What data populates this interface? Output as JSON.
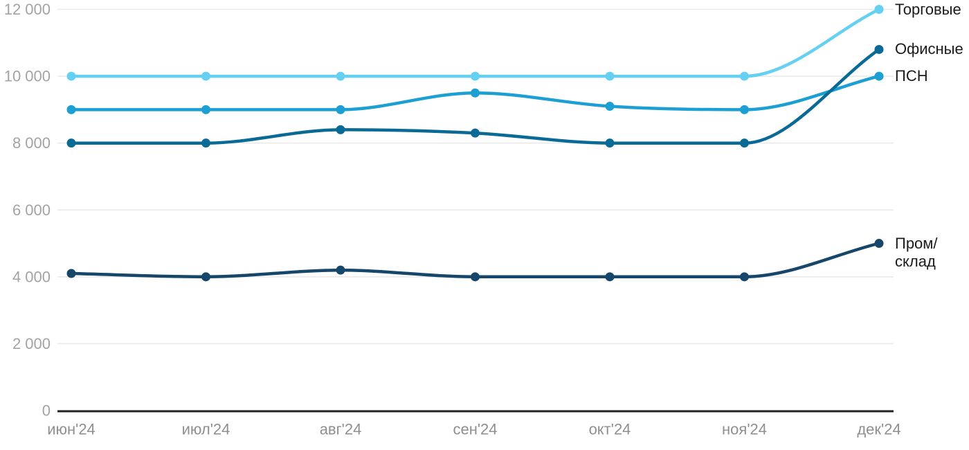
{
  "chart_data": {
    "type": "line",
    "categories": [
      "июн'24",
      "июл'24",
      "авг'24",
      "сен'24",
      "окт'24",
      "ноя'24",
      "дек'24"
    ],
    "series": [
      {
        "name": "Торговые",
        "label": "Торговые",
        "color": "#66D0F2",
        "values": [
          10000,
          10000,
          10000,
          10000,
          10000,
          10000,
          12000
        ]
      },
      {
        "name": "ПСН",
        "label": "ПСН",
        "color": "#1C9FD2",
        "values": [
          9000,
          9000,
          9000,
          9500,
          9100,
          9000,
          10000
        ]
      },
      {
        "name": "Офисные",
        "label": "Офисные",
        "color": "#0A6A96",
        "values": [
          8000,
          8000,
          8400,
          8300,
          8000,
          8000,
          10800
        ]
      },
      {
        "name": "Пром/склад",
        "label": "Пром/\nсклад",
        "color": "#164669",
        "values": [
          4100,
          4000,
          4200,
          4000,
          4000,
          4000,
          5000
        ]
      }
    ],
    "y_ticks": [
      {
        "value": 0,
        "label": "0"
      },
      {
        "value": 2000,
        "label": "2 000"
      },
      {
        "value": 4000,
        "label": "4 000"
      },
      {
        "value": 6000,
        "label": "6 000"
      },
      {
        "value": 8000,
        "label": "8 000"
      },
      {
        "value": 10000,
        "label": "10 000"
      },
      {
        "value": 12000,
        "label": "12 000"
      }
    ],
    "ylim": [
      0,
      12000
    ],
    "grid": true,
    "legend_position": "right-of-line-end",
    "line_interpolation": "smooth-monotone"
  },
  "colors": {
    "background": "#FFFFFF",
    "grid": "#E8E8E8",
    "axis": "#222222",
    "y_tick_text": "#A3A3A3",
    "x_tick_text": "#8F8F8F",
    "legend_text": "#1B1B1B"
  }
}
